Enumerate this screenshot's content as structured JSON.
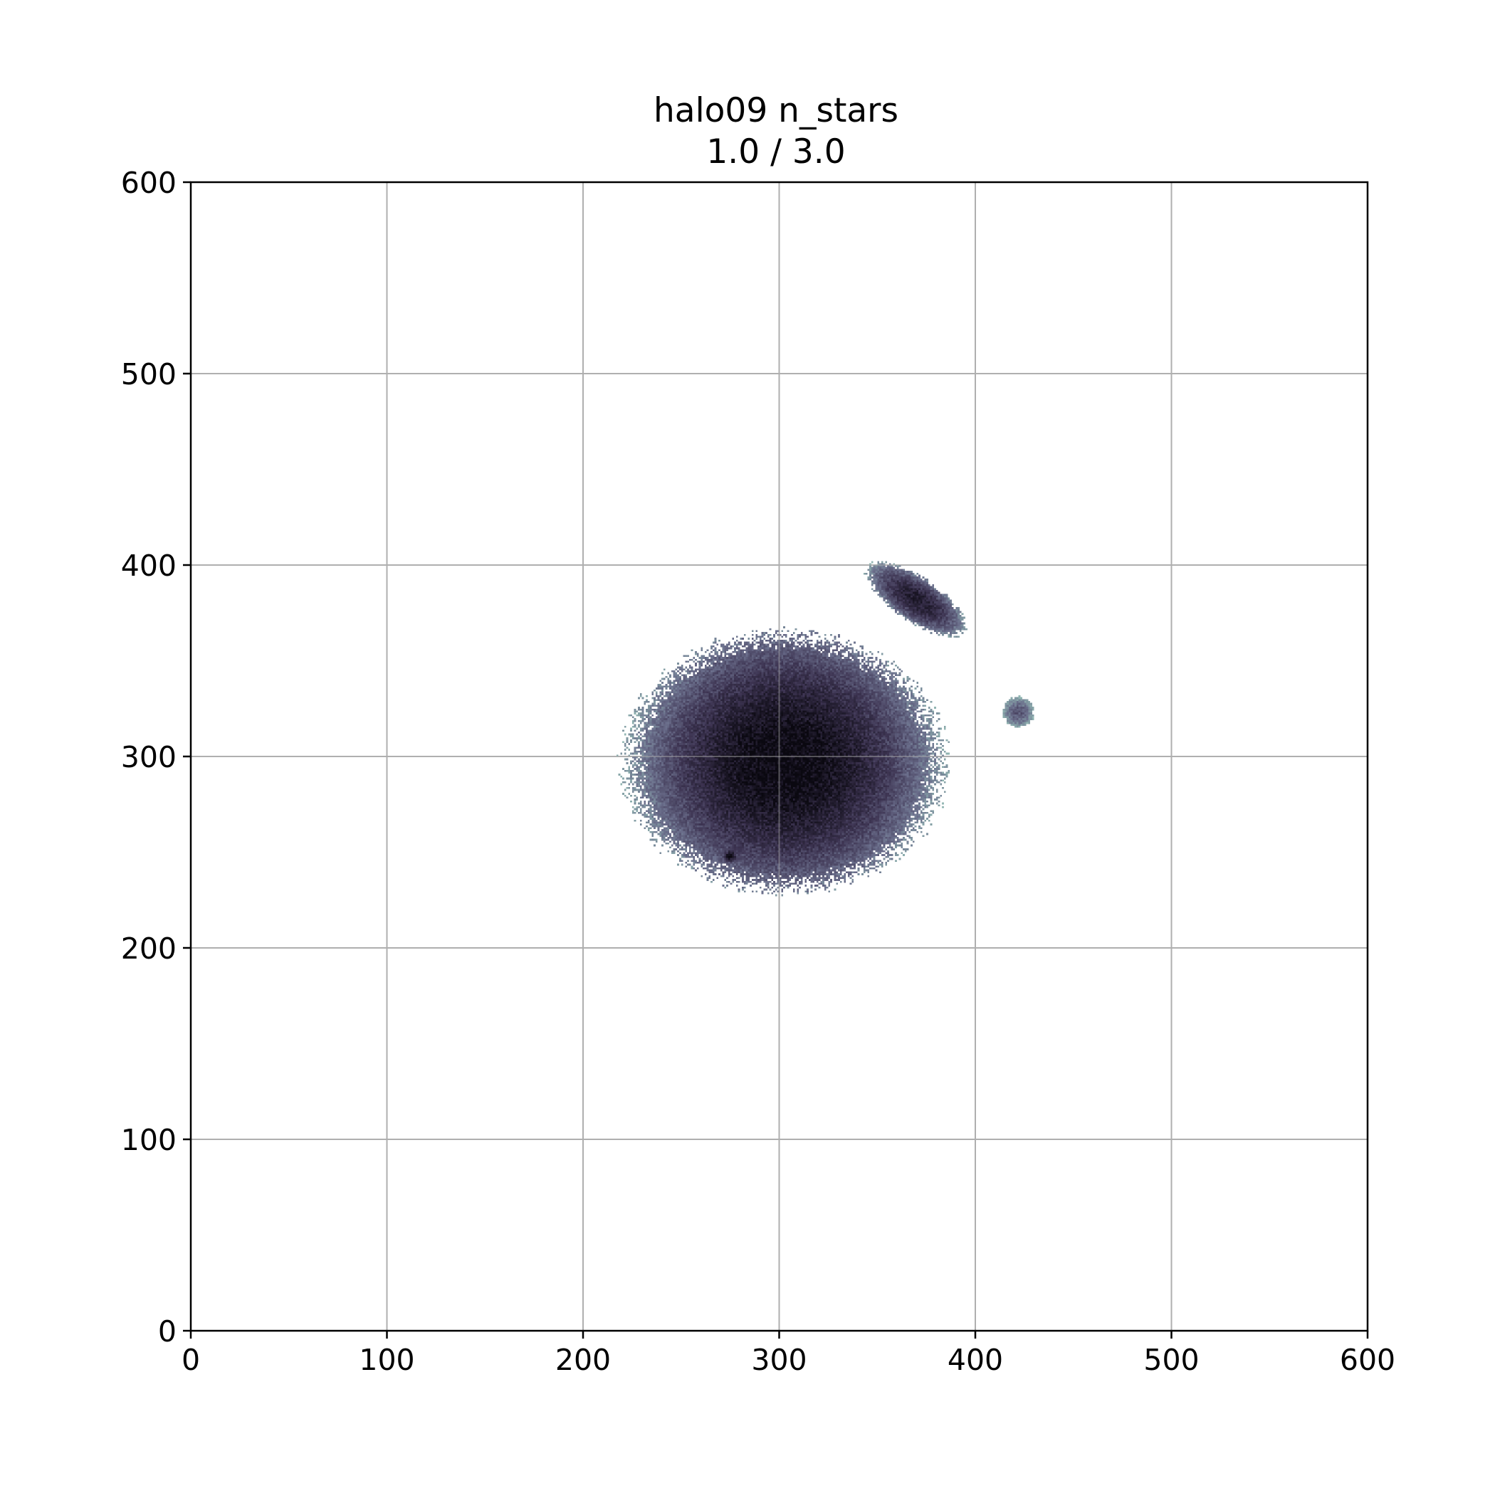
{
  "chart_data": {
    "type": "heatmap",
    "title": "halo09 n_stars",
    "subtitle": "1.0 / 3.0",
    "xlabel": "",
    "ylabel": "",
    "xlim": [
      0,
      600
    ],
    "ylim": [
      0,
      600
    ],
    "xticks": [
      "0",
      "100",
      "200",
      "300",
      "400",
      "500",
      "600"
    ],
    "yticks": [
      "0",
      "100",
      "200",
      "300",
      "400",
      "500",
      "600"
    ],
    "grid": true,
    "colormap": [
      "#ffffff",
      "#c9e1de",
      "#8fb3b0",
      "#6b6f8c",
      "#3d3452",
      "#0a0810"
    ],
    "blobs": [
      {
        "label": "main halo",
        "cx": 303,
        "cy": 297,
        "sigma_x": 30,
        "sigma_y": 28,
        "peak": 1.0,
        "extent_x": 70,
        "extent_y": 58
      },
      {
        "label": "satellite",
        "cx": 370,
        "cy": 382,
        "sigma_x": 12,
        "sigma_y": 5,
        "angle_deg": -35,
        "peak": 0.55,
        "extent_x": 26,
        "extent_y": 10
      },
      {
        "label": "small clump",
        "cx": 275,
        "cy": 248,
        "sigma_x": 1.5,
        "sigma_y": 1.5,
        "peak": 0.8,
        "extent_x": 3,
        "extent_y": 3
      },
      {
        "label": "faint clump",
        "cx": 422,
        "cy": 323,
        "sigma_x": 4,
        "sigma_y": 4,
        "peak": 0.12,
        "extent_x": 7,
        "extent_y": 7
      }
    ]
  }
}
